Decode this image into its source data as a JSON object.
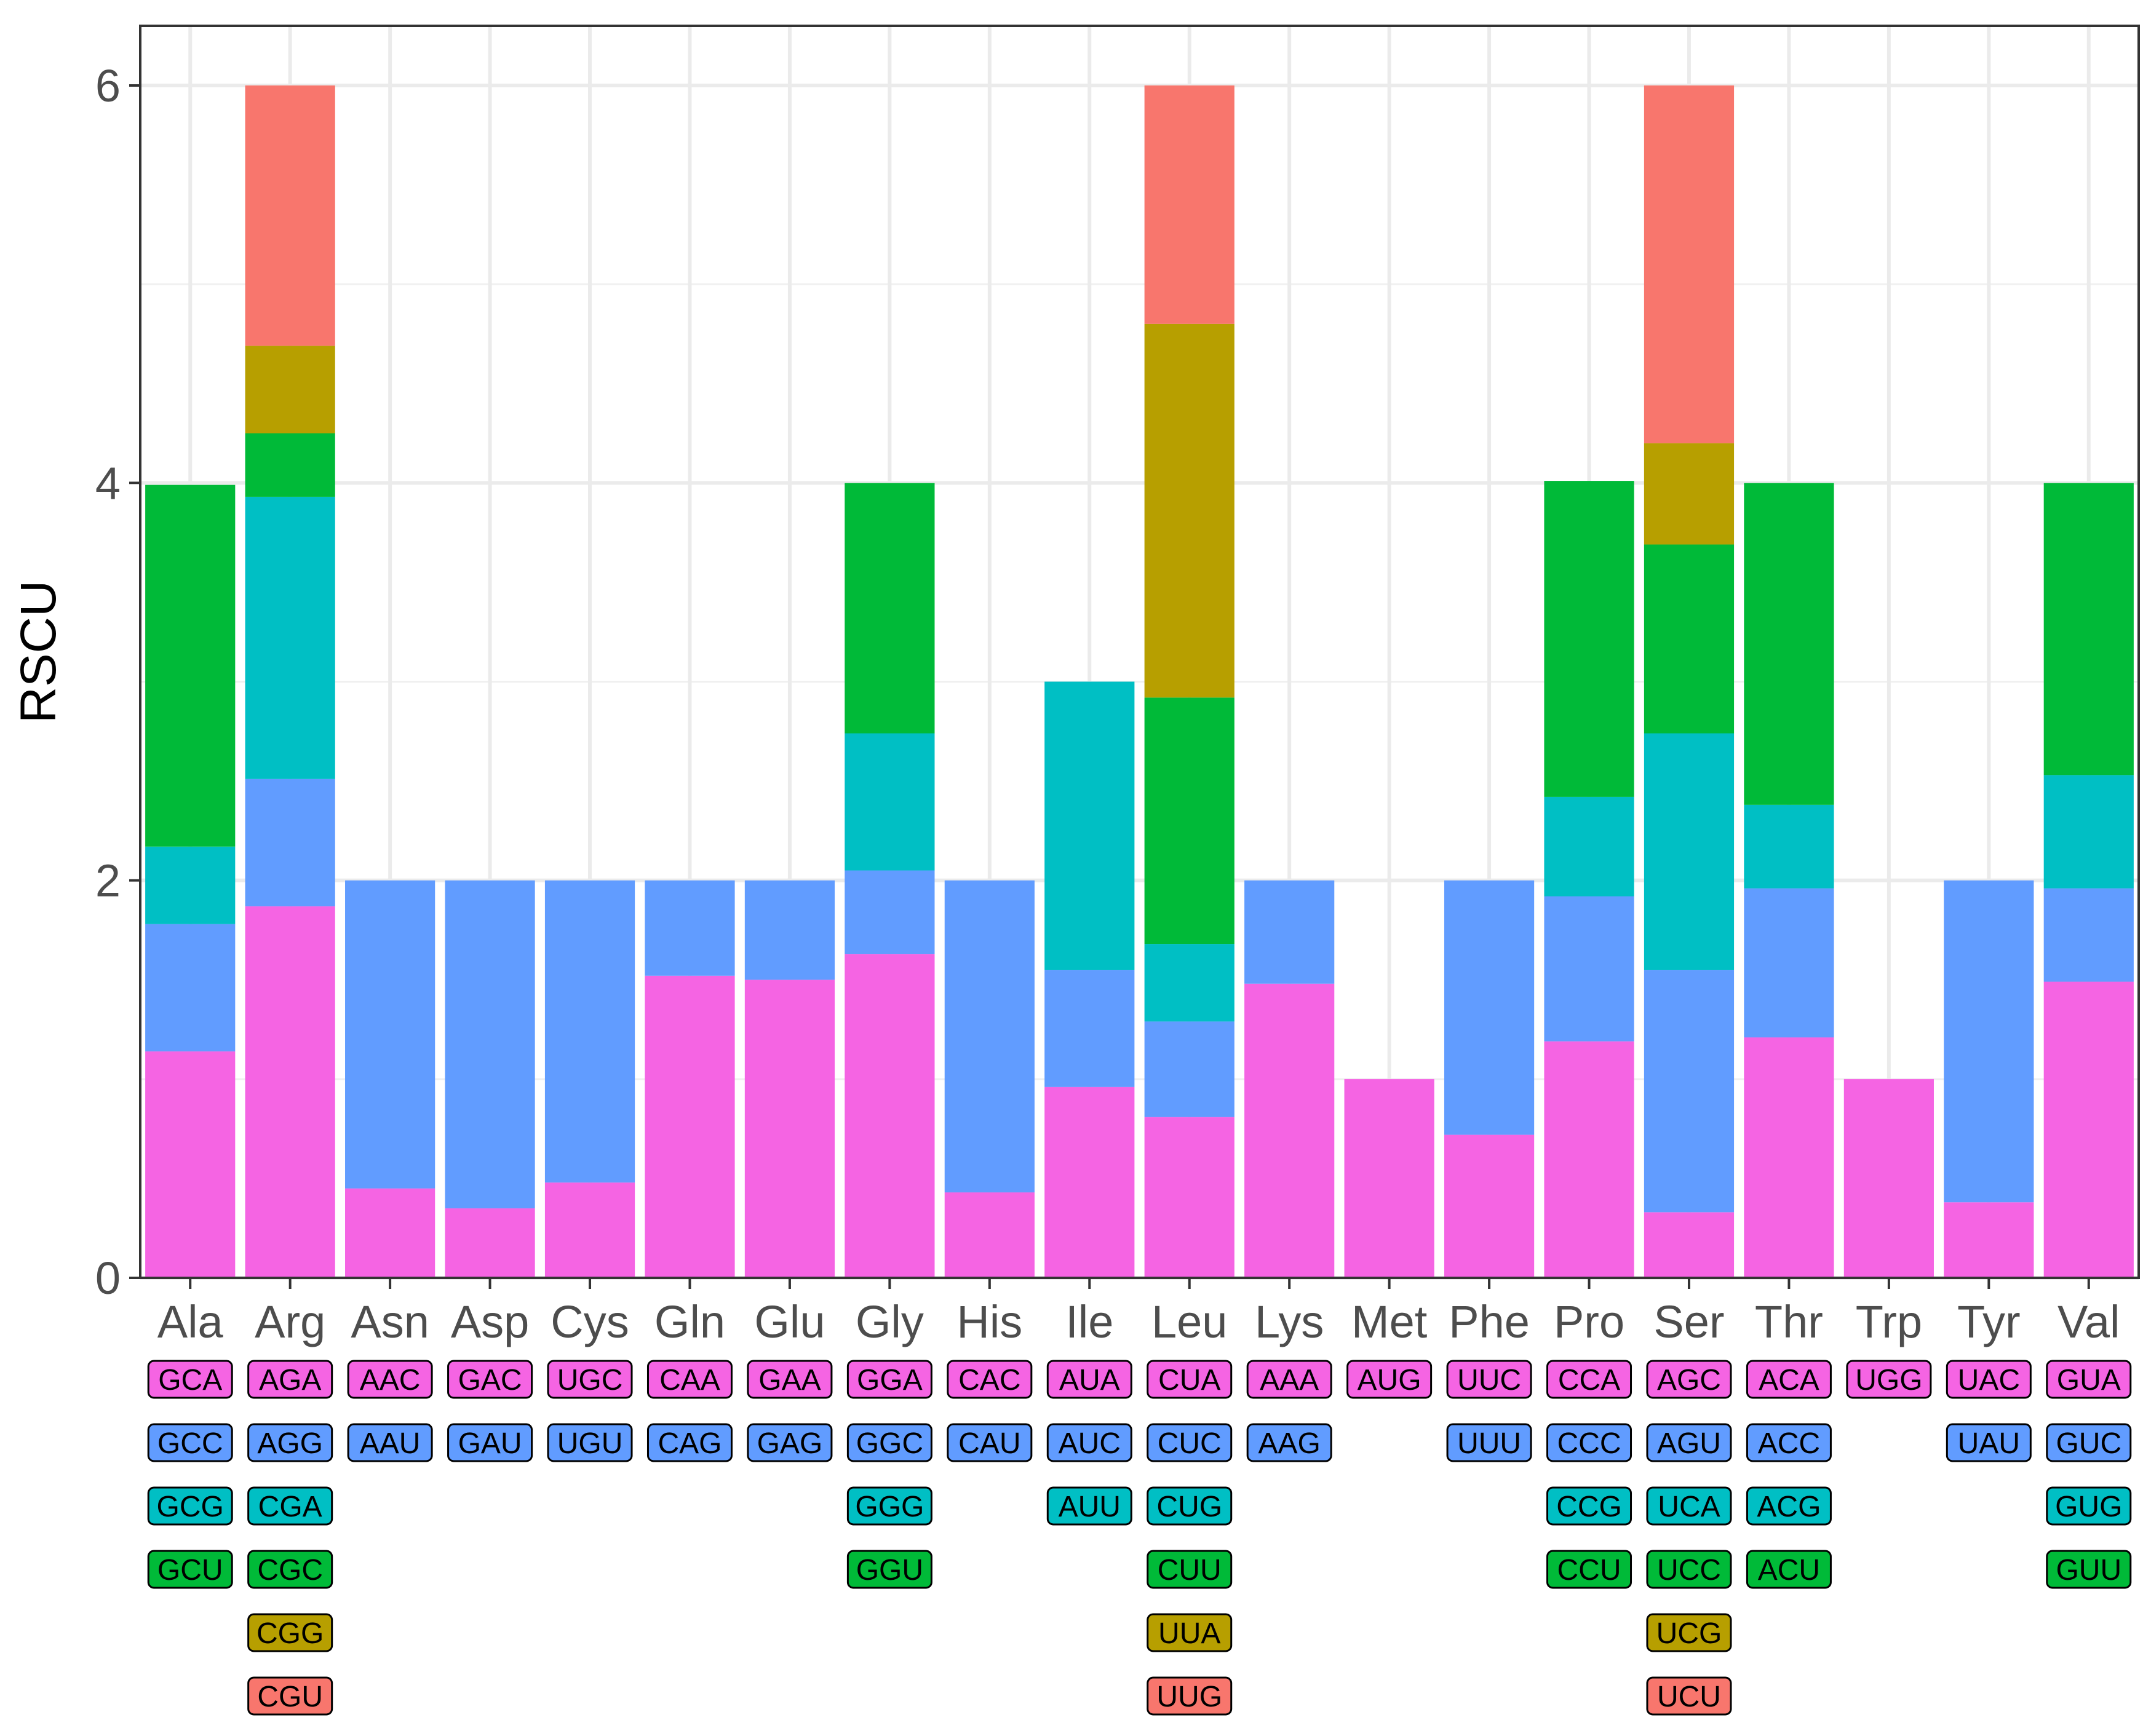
{
  "chart_data": {
    "type": "bar",
    "stacked": true,
    "title": "",
    "xlabel": "",
    "ylabel": "RSCU",
    "ylim": [
      0,
      6.3
    ],
    "yticks": [
      0,
      2,
      4,
      6
    ],
    "grid": true,
    "legend": "none",
    "colors": [
      "#F564E3",
      "#619CFF",
      "#00BFC4",
      "#00BA38",
      "#B79F00",
      "#F8766D"
    ],
    "categories": [
      "Ala",
      "Arg",
      "Asn",
      "Asp",
      "Cys",
      "Gln",
      "Glu",
      "Gly",
      "His",
      "Ile",
      "Leu",
      "Lys",
      "Met",
      "Phe",
      "Pro",
      "Ser",
      "Thr",
      "Trp",
      "Tyr",
      "Val"
    ],
    "bars": [
      {
        "aa": "Ala",
        "codons": [
          "GCA",
          "GCC",
          "GCG",
          "GCU"
        ],
        "values": [
          1.14,
          0.64,
          0.39,
          1.82
        ]
      },
      {
        "aa": "Arg",
        "codons": [
          "AGA",
          "AGG",
          "CGA",
          "CGC",
          "CGG",
          "CGU"
        ],
        "values": [
          1.87,
          0.64,
          1.42,
          0.32,
          0.44,
          1.31
        ]
      },
      {
        "aa": "Asn",
        "codons": [
          "AAC",
          "AAU"
        ],
        "values": [
          0.45,
          1.55
        ]
      },
      {
        "aa": "Asp",
        "codons": [
          "GAC",
          "GAU"
        ],
        "values": [
          0.35,
          1.65
        ]
      },
      {
        "aa": "Cys",
        "codons": [
          "UGC",
          "UGU"
        ],
        "values": [
          0.48,
          1.52
        ]
      },
      {
        "aa": "Gln",
        "codons": [
          "CAA",
          "CAG"
        ],
        "values": [
          1.52,
          0.48
        ]
      },
      {
        "aa": "Glu",
        "codons": [
          "GAA",
          "GAG"
        ],
        "values": [
          1.5,
          0.5
        ]
      },
      {
        "aa": "Gly",
        "codons": [
          "GGA",
          "GGC",
          "GGG",
          "GGU"
        ],
        "values": [
          1.63,
          0.42,
          0.69,
          1.26
        ]
      },
      {
        "aa": "His",
        "codons": [
          "CAC",
          "CAU"
        ],
        "values": [
          0.43,
          1.57
        ]
      },
      {
        "aa": "Ile",
        "codons": [
          "AUA",
          "AUC",
          "AUU"
        ],
        "values": [
          0.96,
          0.59,
          1.45
        ]
      },
      {
        "aa": "Leu",
        "codons": [
          "CUA",
          "CUC",
          "CUG",
          "CUU",
          "UUA",
          "UUG"
        ],
        "values": [
          0.81,
          0.48,
          0.39,
          1.24,
          1.88,
          1.2
        ]
      },
      {
        "aa": "Lys",
        "codons": [
          "AAA",
          "AAG"
        ],
        "values": [
          1.48,
          0.52
        ]
      },
      {
        "aa": "Met",
        "codons": [
          "AUG"
        ],
        "values": [
          1.0
        ]
      },
      {
        "aa": "Phe",
        "codons": [
          "UUC",
          "UUU"
        ],
        "values": [
          0.72,
          1.28
        ]
      },
      {
        "aa": "Pro",
        "codons": [
          "CCA",
          "CCC",
          "CCG",
          "CCU"
        ],
        "values": [
          1.19,
          0.73,
          0.5,
          1.59
        ]
      },
      {
        "aa": "Ser",
        "codons": [
          "AGC",
          "AGU",
          "UCA",
          "UCC",
          "UCG",
          "UCU"
        ],
        "values": [
          0.33,
          1.22,
          1.19,
          0.95,
          0.51,
          1.8
        ]
      },
      {
        "aa": "Thr",
        "codons": [
          "ACA",
          "ACC",
          "ACG",
          "ACU"
        ],
        "values": [
          1.21,
          0.75,
          0.42,
          1.62
        ]
      },
      {
        "aa": "Trp",
        "codons": [
          "UGG"
        ],
        "values": [
          1.0
        ]
      },
      {
        "aa": "Tyr",
        "codons": [
          "UAC",
          "UAU"
        ],
        "values": [
          0.38,
          1.62
        ]
      },
      {
        "aa": "Val",
        "codons": [
          "GUA",
          "GUC",
          "GUG",
          "GUU"
        ],
        "values": [
          1.49,
          0.47,
          0.57,
          1.47
        ]
      }
    ]
  }
}
